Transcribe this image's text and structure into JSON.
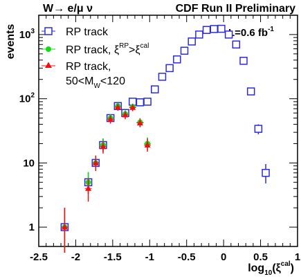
{
  "chart_data": {
    "type": "scatter",
    "title_left": "W→ e/μ ν",
    "title_right": "CDF Run II Preliminary",
    "annotation": "L=0.6 fb",
    "annotation_sup": "-1",
    "xlabel": "log",
    "xlabel_sub": "10",
    "xlabel_arg": "(ξ",
    "xlabel_sup": "cal",
    "xlabel_close": ")",
    "ylabel": "events",
    "xlim": [
      -2.5,
      1.0
    ],
    "ylim": [
      0.5,
      2000
    ],
    "yscale": "log",
    "xticks": [
      -2.5,
      -2,
      -1.5,
      -1,
      -0.5,
      0,
      0.5,
      1
    ],
    "xtick_labels": [
      "-2.5",
      "-2",
      "-1.5",
      "-1",
      "-0.5",
      "0",
      "0.5",
      "1"
    ],
    "yticks": [
      1,
      10,
      100,
      1000
    ],
    "legend_position": "top-left",
    "series": [
      {
        "name": "RP track",
        "marker": "open-square",
        "color": "#2a2adf",
        "points": [
          {
            "x": -2.15,
            "y": 1,
            "lo": 0.4,
            "hi": 2.0
          },
          {
            "x": -1.83,
            "y": 5,
            "lo": 3.3,
            "hi": 7.2
          },
          {
            "x": -1.73,
            "y": 10,
            "lo": 7.5,
            "hi": 13
          },
          {
            "x": -1.63,
            "y": 19,
            "lo": 15,
            "hi": 24
          },
          {
            "x": -1.53,
            "y": 50,
            "lo": 43,
            "hi": 57
          },
          {
            "x": -1.43,
            "y": 77,
            "lo": 68,
            "hi": 86
          },
          {
            "x": -1.33,
            "y": 60,
            "lo": 52,
            "hi": 68
          },
          {
            "x": -1.23,
            "y": 90,
            "lo": 80,
            "hi": 100
          },
          {
            "x": -1.13,
            "y": 88,
            "lo": 78,
            "hi": 98
          },
          {
            "x": -1.03,
            "y": 90,
            "lo": 80,
            "hi": 100
          },
          {
            "x": -0.93,
            "y": 140
          },
          {
            "x": -0.83,
            "y": 220
          },
          {
            "x": -0.73,
            "y": 300
          },
          {
            "x": -0.63,
            "y": 410
          },
          {
            "x": -0.53,
            "y": 560
          },
          {
            "x": -0.43,
            "y": 780
          },
          {
            "x": -0.33,
            "y": 1000
          },
          {
            "x": -0.23,
            "y": 1180
          },
          {
            "x": -0.13,
            "y": 1220
          },
          {
            "x": -0.03,
            "y": 1230
          },
          {
            "x": 0.07,
            "y": 1000
          },
          {
            "x": 0.17,
            "y": 700
          },
          {
            "x": 0.27,
            "y": 390
          },
          {
            "x": 0.37,
            "y": 130,
            "lo": 118,
            "hi": 142
          },
          {
            "x": 0.47,
            "y": 34,
            "lo": 28,
            "hi": 40
          },
          {
            "x": 0.57,
            "y": 7,
            "lo": 4.8,
            "hi": 9.6
          }
        ]
      },
      {
        "name": "RP track, ξ",
        "name_sup1": "RP",
        "name_mid": ">ξ",
        "name_sup2": "cal",
        "marker": "filled-circle",
        "color": "#11dd11",
        "points": [
          {
            "x": -2.15,
            "y": 1,
            "lo": 0.4,
            "hi": 2.0
          },
          {
            "x": -1.83,
            "y": 5,
            "lo": 3.3,
            "hi": 7.2
          },
          {
            "x": -1.73,
            "y": 10,
            "lo": 7.5,
            "hi": 13
          },
          {
            "x": -1.63,
            "y": 19,
            "lo": 15,
            "hi": 24
          },
          {
            "x": -1.53,
            "y": 50,
            "lo": 43,
            "hi": 57
          },
          {
            "x": -1.43,
            "y": 77,
            "lo": 68,
            "hi": 86
          },
          {
            "x": -1.33,
            "y": 58,
            "lo": 50,
            "hi": 66
          },
          {
            "x": -1.23,
            "y": 75,
            "lo": 66,
            "hi": 84
          },
          {
            "x": -1.13,
            "y": 43,
            "lo": 37,
            "hi": 50
          },
          {
            "x": -1.03,
            "y": 20,
            "lo": 16,
            "hi": 25
          }
        ]
      },
      {
        "name": "RP track,",
        "name_line2": "50<M",
        "name_line2_sub": "W",
        "name_line2_end": "<120",
        "marker": "filled-triangle",
        "color": "#ee1111",
        "points": [
          {
            "x": -2.15,
            "y": 1,
            "lo": 0.4,
            "hi": 2.0
          },
          {
            "x": -1.83,
            "y": 4,
            "lo": 2.5,
            "hi": 5.8
          },
          {
            "x": -1.73,
            "y": 10,
            "lo": 7.5,
            "hi": 13
          },
          {
            "x": -1.63,
            "y": 18,
            "lo": 14,
            "hi": 22
          },
          {
            "x": -1.53,
            "y": 48,
            "lo": 41,
            "hi": 55
          },
          {
            "x": -1.43,
            "y": 74,
            "lo": 65,
            "hi": 83
          },
          {
            "x": -1.33,
            "y": 56,
            "lo": 48,
            "hi": 64
          },
          {
            "x": -1.23,
            "y": 73,
            "lo": 64,
            "hi": 82
          },
          {
            "x": -1.13,
            "y": 42,
            "lo": 36,
            "hi": 49
          },
          {
            "x": -1.03,
            "y": 19,
            "lo": 15,
            "hi": 24
          }
        ]
      }
    ]
  }
}
